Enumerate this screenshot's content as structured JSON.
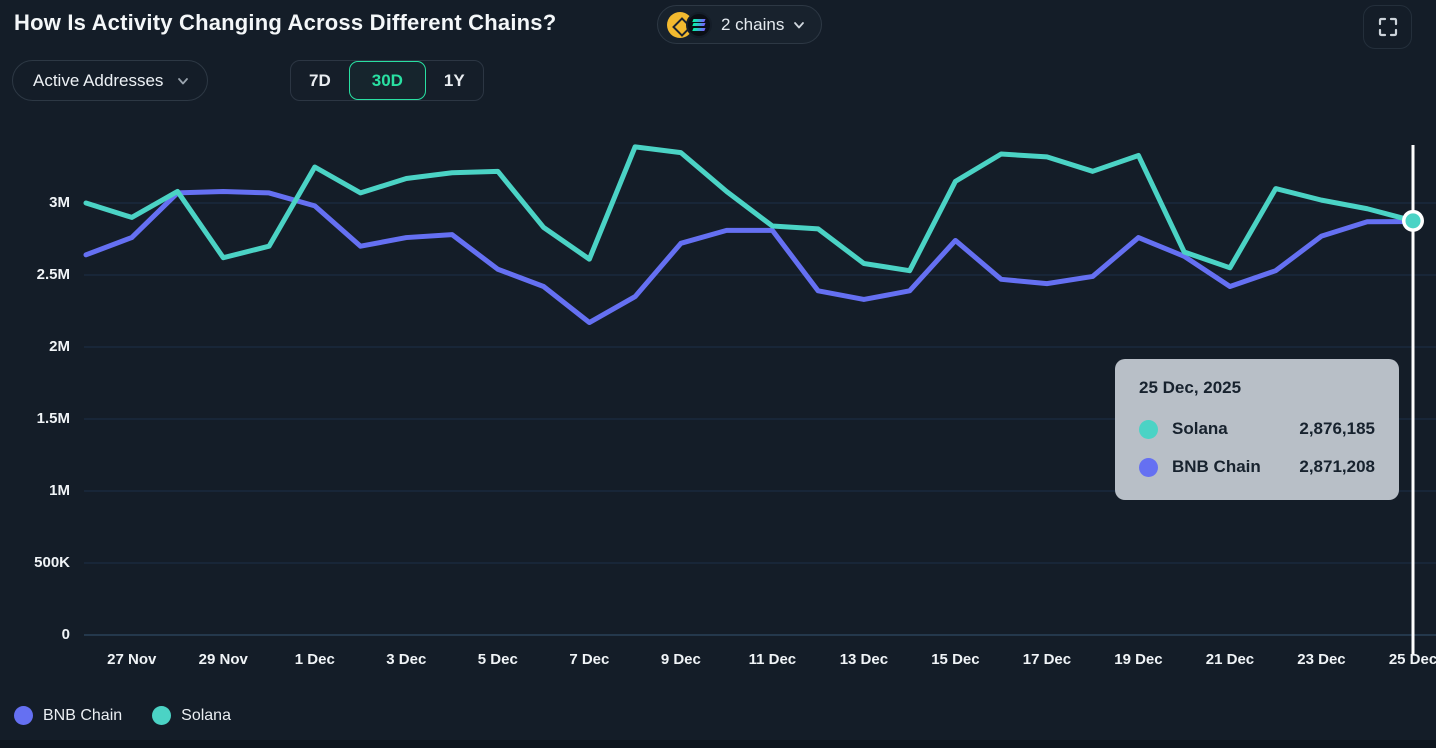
{
  "header": {
    "title": "How Is Activity Changing Across Different Chains?",
    "chains_selector": {
      "label": "2 chains",
      "icons": [
        "bnb-chain",
        "solana"
      ]
    }
  },
  "controls": {
    "metric_dropdown": {
      "value": "Active Addresses"
    },
    "range_tabs": [
      {
        "label": "7D",
        "selected": false
      },
      {
        "label": "30D",
        "selected": true
      },
      {
        "label": "1Y",
        "selected": false
      }
    ]
  },
  "tooltip": {
    "date": "25 Dec, 2025",
    "rows": [
      {
        "name": "Solana",
        "value": "2,876,185",
        "color": "#4bd3c5"
      },
      {
        "name": "BNB Chain",
        "value": "2,871,208",
        "color": "#6570f2"
      }
    ]
  },
  "legend": [
    {
      "label": "BNB Chain",
      "color": "#6570f2"
    },
    {
      "label": "Solana",
      "color": "#4bd3c5"
    }
  ],
  "chart_data": {
    "type": "line",
    "title": "Active Addresses, 30D, BNB Chain vs Solana",
    "x": [
      "26 Nov",
      "27 Nov",
      "28 Nov",
      "29 Nov",
      "30 Nov",
      "1 Dec",
      "2 Dec",
      "3 Dec",
      "4 Dec",
      "5 Dec",
      "6 Dec",
      "7 Dec",
      "8 Dec",
      "9 Dec",
      "10 Dec",
      "11 Dec",
      "12 Dec",
      "13 Dec",
      "14 Dec",
      "15 Dec",
      "16 Dec",
      "17 Dec",
      "18 Dec",
      "19 Dec",
      "20 Dec",
      "21 Dec",
      "22 Dec",
      "23 Dec",
      "24 Dec",
      "25 Dec"
    ],
    "x_tick_every": 2,
    "series": [
      {
        "name": "BNB Chain",
        "color": "#6570f2",
        "values": [
          2640000,
          2760000,
          3070000,
          3080000,
          3070000,
          2980000,
          2700000,
          2760000,
          2780000,
          2540000,
          2420000,
          2170000,
          2350000,
          2720000,
          2810000,
          2810000,
          2390000,
          2330000,
          2390000,
          2740000,
          2470000,
          2440000,
          2490000,
          2760000,
          2630000,
          2420000,
          2530000,
          2770000,
          2870000,
          2871208
        ]
      },
      {
        "name": "Solana",
        "color": "#4bd3c5",
        "values": [
          3000000,
          2900000,
          3080000,
          2620000,
          2700000,
          3250000,
          3070000,
          3170000,
          3210000,
          3220000,
          2830000,
          2610000,
          3390000,
          3350000,
          3080000,
          2840000,
          2820000,
          2580000,
          2530000,
          3150000,
          3340000,
          3320000,
          3220000,
          3330000,
          2660000,
          2550000,
          3100000,
          3020000,
          2960000,
          2876185
        ]
      }
    ],
    "ylim": [
      0,
      3500000
    ],
    "y_ticks": [
      {
        "label": "0",
        "value": 0
      },
      {
        "label": "500K",
        "value": 500000
      },
      {
        "label": "1M",
        "value": 1000000
      },
      {
        "label": "1.5M",
        "value": 1500000
      },
      {
        "label": "2M",
        "value": 2000000
      },
      {
        "label": "2.5M",
        "value": 2500000
      },
      {
        "label": "3M",
        "value": 3000000
      }
    ],
    "grid": true,
    "legend_position": "bottom",
    "crosshair_date": "25 Dec",
    "highlight_point": {
      "series": "Solana",
      "date": "25 Dec"
    }
  },
  "colors": {
    "background": "#141d28",
    "grid": "#1d3049",
    "axis": "#2a4158",
    "accent_green": "#29e0a2",
    "tooltip_bg": "#b8bfc7",
    "crosshair": "#ffffff"
  }
}
